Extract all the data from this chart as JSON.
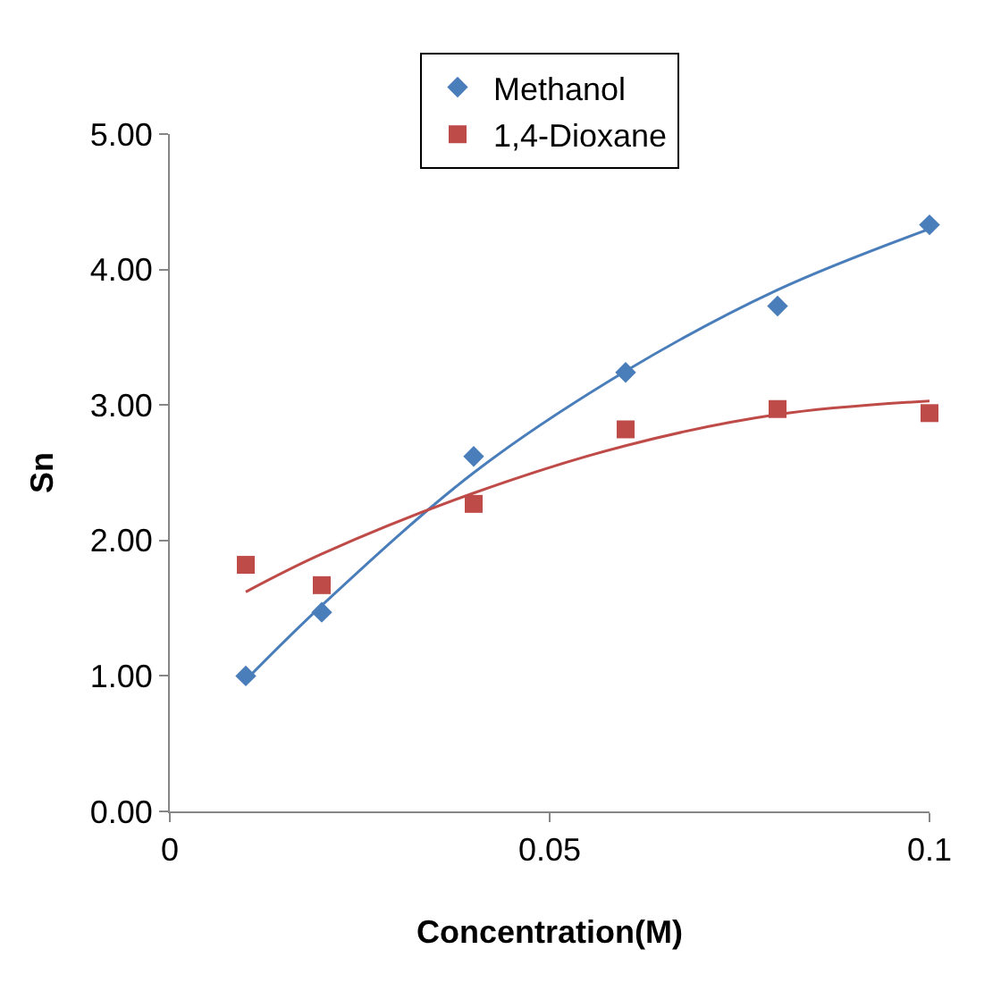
{
  "chart_data": {
    "type": "scatter",
    "xlabel": "Concentration(M)",
    "ylabel": "Sn",
    "x": [
      0.01,
      0.02,
      0.04,
      0.06,
      0.08,
      0.1
    ],
    "series": [
      {
        "name": "Methanol",
        "color": "#4a7ebb",
        "marker": "diamond",
        "values": [
          1.0,
          1.47,
          2.62,
          3.24,
          3.73,
          4.33
        ]
      },
      {
        "name": "1,4-Dioxane",
        "color": "#be4b48",
        "marker": "square",
        "values": [
          1.82,
          1.67,
          2.27,
          2.82,
          2.97,
          2.94
        ]
      },
      {
        "type": "line",
        "color": "#4a7ebb",
        "marker": "none",
        "x": [
          0.01,
          0.02,
          0.04,
          0.06,
          0.08,
          0.1
        ],
        "values": [
          0.97,
          1.52,
          2.5,
          3.25,
          3.85,
          4.3
        ]
      },
      {
        "type": "line",
        "color": "#be4b48",
        "marker": "none",
        "x": [
          0.01,
          0.02,
          0.04,
          0.06,
          0.08,
          0.1
        ],
        "values": [
          1.62,
          1.9,
          2.35,
          2.7,
          2.93,
          3.03
        ]
      }
    ],
    "xlim": [
      0,
      0.1
    ],
    "xticks": [
      0,
      0.05,
      0.1
    ],
    "ylim": [
      0,
      5
    ],
    "yticks": [
      {
        "value": 0,
        "label": "0.00"
      },
      {
        "value": 1,
        "label": "1.00"
      },
      {
        "value": 2,
        "label": "2.00"
      },
      {
        "value": 3,
        "label": "3.00"
      },
      {
        "value": 4,
        "label": "4.00"
      },
      {
        "value": 5,
        "label": "5.00"
      }
    ],
    "legend": "top"
  }
}
